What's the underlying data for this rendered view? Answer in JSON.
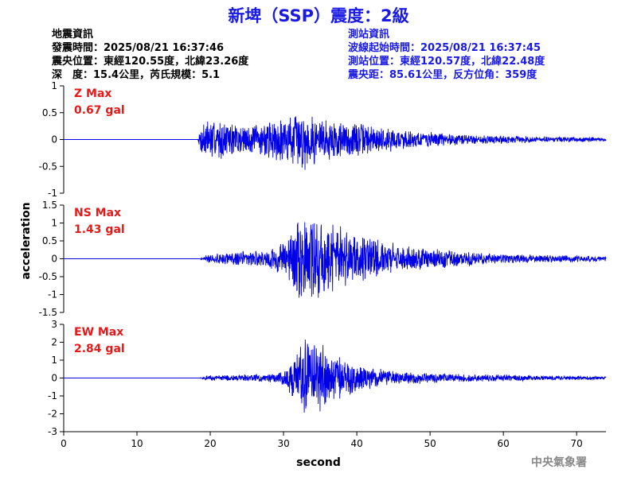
{
  "title": "新埤（SSP）震度：2級",
  "colors": {
    "title": "#1a1ae6",
    "event_info": "#000000",
    "station_info": "#1a1ae6",
    "max_label": "#e41a1a",
    "trace": "#0000e6",
    "credit": "#888888"
  },
  "event_info": {
    "heading": "地震資訊",
    "origin_time": "發震時間：2025/08/21 16:37:46",
    "epicenter": "震央位置：東經120.55度，北緯23.26度",
    "depth_magnitude": "深　度：15.4公里，芮氏規模：5.1"
  },
  "station_info": {
    "heading": "測站資訊",
    "wave_start": "波線起始時間：2025/08/21 16:37:45",
    "station_location": "測站位置：東經120.57度，北緯22.48度",
    "distance_azimuth": "震央距：85.61公里，反方位角：359度"
  },
  "credit": "中央氣象署",
  "chart_data": {
    "type": "line",
    "xlabel": "second",
    "ylabel": "acceleration",
    "xlim": [
      0,
      74
    ],
    "xticks": [
      0,
      10,
      20,
      30,
      40,
      50,
      60,
      70
    ],
    "panels": [
      {
        "name": "Z",
        "max_title": "Z Max",
        "max_value": "0.67 gal",
        "ylim": [
          -1,
          1
        ],
        "yticks": [
          1,
          0.5,
          0,
          -0.5,
          -1
        ],
        "envelope": [
          [
            0,
            0
          ],
          [
            18.3,
            0
          ],
          [
            19,
            0.45
          ],
          [
            22,
            0.35
          ],
          [
            26,
            0.3
          ],
          [
            30,
            0.45
          ],
          [
            32.5,
            0.6
          ],
          [
            35,
            0.45
          ],
          [
            40,
            0.35
          ],
          [
            45,
            0.22
          ],
          [
            50,
            0.15
          ],
          [
            55,
            0.1
          ],
          [
            60,
            0.08
          ],
          [
            65,
            0.06
          ],
          [
            70,
            0.05
          ],
          [
            74,
            0.04
          ]
        ],
        "seed": 7
      },
      {
        "name": "NS",
        "max_title": "NS Max",
        "max_value": "1.43 gal",
        "ylim": [
          -1.5,
          1.5
        ],
        "yticks": [
          1.5,
          1,
          0.5,
          0,
          -0.5,
          -1,
          -1.5
        ],
        "envelope": [
          [
            0,
            0
          ],
          [
            18.5,
            0
          ],
          [
            19.5,
            0.12
          ],
          [
            22,
            0.18
          ],
          [
            25,
            0.25
          ],
          [
            28,
            0.3
          ],
          [
            30,
            0.5
          ],
          [
            32,
            1.2
          ],
          [
            34,
            1.4
          ],
          [
            36,
            1.2
          ],
          [
            38,
            0.9
          ],
          [
            42,
            0.6
          ],
          [
            46,
            0.4
          ],
          [
            50,
            0.3
          ],
          [
            55,
            0.22
          ],
          [
            60,
            0.15
          ],
          [
            65,
            0.12
          ],
          [
            70,
            0.1
          ],
          [
            74,
            0.08
          ]
        ],
        "seed": 21
      },
      {
        "name": "EW",
        "max_title": "EW Max",
        "max_value": "2.84 gal",
        "ylim": [
          -3,
          3
        ],
        "yticks": [
          3,
          2,
          1,
          0,
          -1,
          -2,
          -3
        ],
        "envelope": [
          [
            0,
            0
          ],
          [
            18.5,
            0
          ],
          [
            19.5,
            0.15
          ],
          [
            24,
            0.2
          ],
          [
            28,
            0.25
          ],
          [
            30,
            0.4
          ],
          [
            32,
            1.8
          ],
          [
            33,
            2.7
          ],
          [
            35,
            2.2
          ],
          [
            37,
            1.5
          ],
          [
            39,
            1.0
          ],
          [
            42,
            0.6
          ],
          [
            46,
            0.4
          ],
          [
            50,
            0.3
          ],
          [
            55,
            0.25
          ],
          [
            60,
            0.2
          ],
          [
            65,
            0.15
          ],
          [
            70,
            0.12
          ],
          [
            74,
            0.1
          ]
        ],
        "seed": 43
      }
    ]
  }
}
